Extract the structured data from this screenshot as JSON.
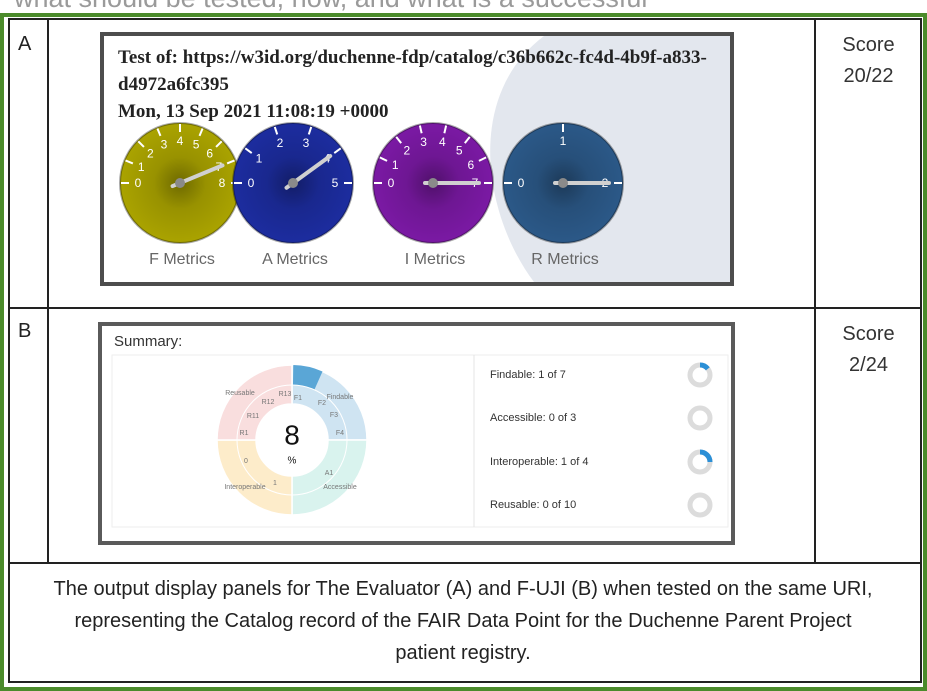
{
  "header_fragment": "what should be tested, how, and what is a successful",
  "rows": [
    {
      "label": "A",
      "score_title": "Score",
      "score": "20/22",
      "test_of": "Test of: https://w3id.org/duchenne-fdp/catalog/c36b662c-fc4d-4b9f-a833-d4972a6fc395",
      "timestamp": "Mon, 13 Sep 2021 11:08:19 +0000",
      "gauges": [
        {
          "name": "F Metrics",
          "color": "#a9a200",
          "value": 7,
          "ticks": [
            0,
            1,
            2,
            3,
            4,
            5,
            6,
            7,
            8
          ]
        },
        {
          "name": "A Metrics",
          "color": "#1c2c9e",
          "value": 4,
          "ticks": [
            0,
            1,
            2,
            3,
            4,
            5
          ]
        },
        {
          "name": "I Metrics",
          "color": "#7a19a3",
          "value": 7,
          "ticks": [
            0,
            1,
            2,
            3,
            4,
            5,
            6,
            7
          ]
        },
        {
          "name": "R Metrics",
          "color": "#2b5887",
          "value": 2,
          "ticks": [
            0,
            1,
            2
          ]
        }
      ]
    },
    {
      "label": "B",
      "score_title": "Score",
      "score": "2/24",
      "summary_title": "Summary:",
      "percent": 8,
      "percent_unit": "%",
      "donut_labels": [
        "Reusable",
        "R13",
        "F1",
        "Findable",
        "R12",
        "F2",
        "R11",
        "F3",
        "R1",
        "F4",
        "0",
        "A1",
        "Interoperable",
        "1",
        "Accessible"
      ],
      "principles": [
        {
          "label": "Findable: 1 of 7",
          "earned": 1,
          "total": 7
        },
        {
          "label": "Accessible: 0 of 3",
          "earned": 0,
          "total": 3
        },
        {
          "label": "Interoperable: 1 of 4",
          "earned": 1,
          "total": 4
        },
        {
          "label": "Reusable: 0 of 10",
          "earned": 0,
          "total": 10
        }
      ]
    }
  ],
  "caption": "The output display panels for The Evaluator (A) and F-UJI (B) when tested on the same URI, representing the Catalog record of the FAIR Data Point for the Duchenne Parent Project patient registry."
}
